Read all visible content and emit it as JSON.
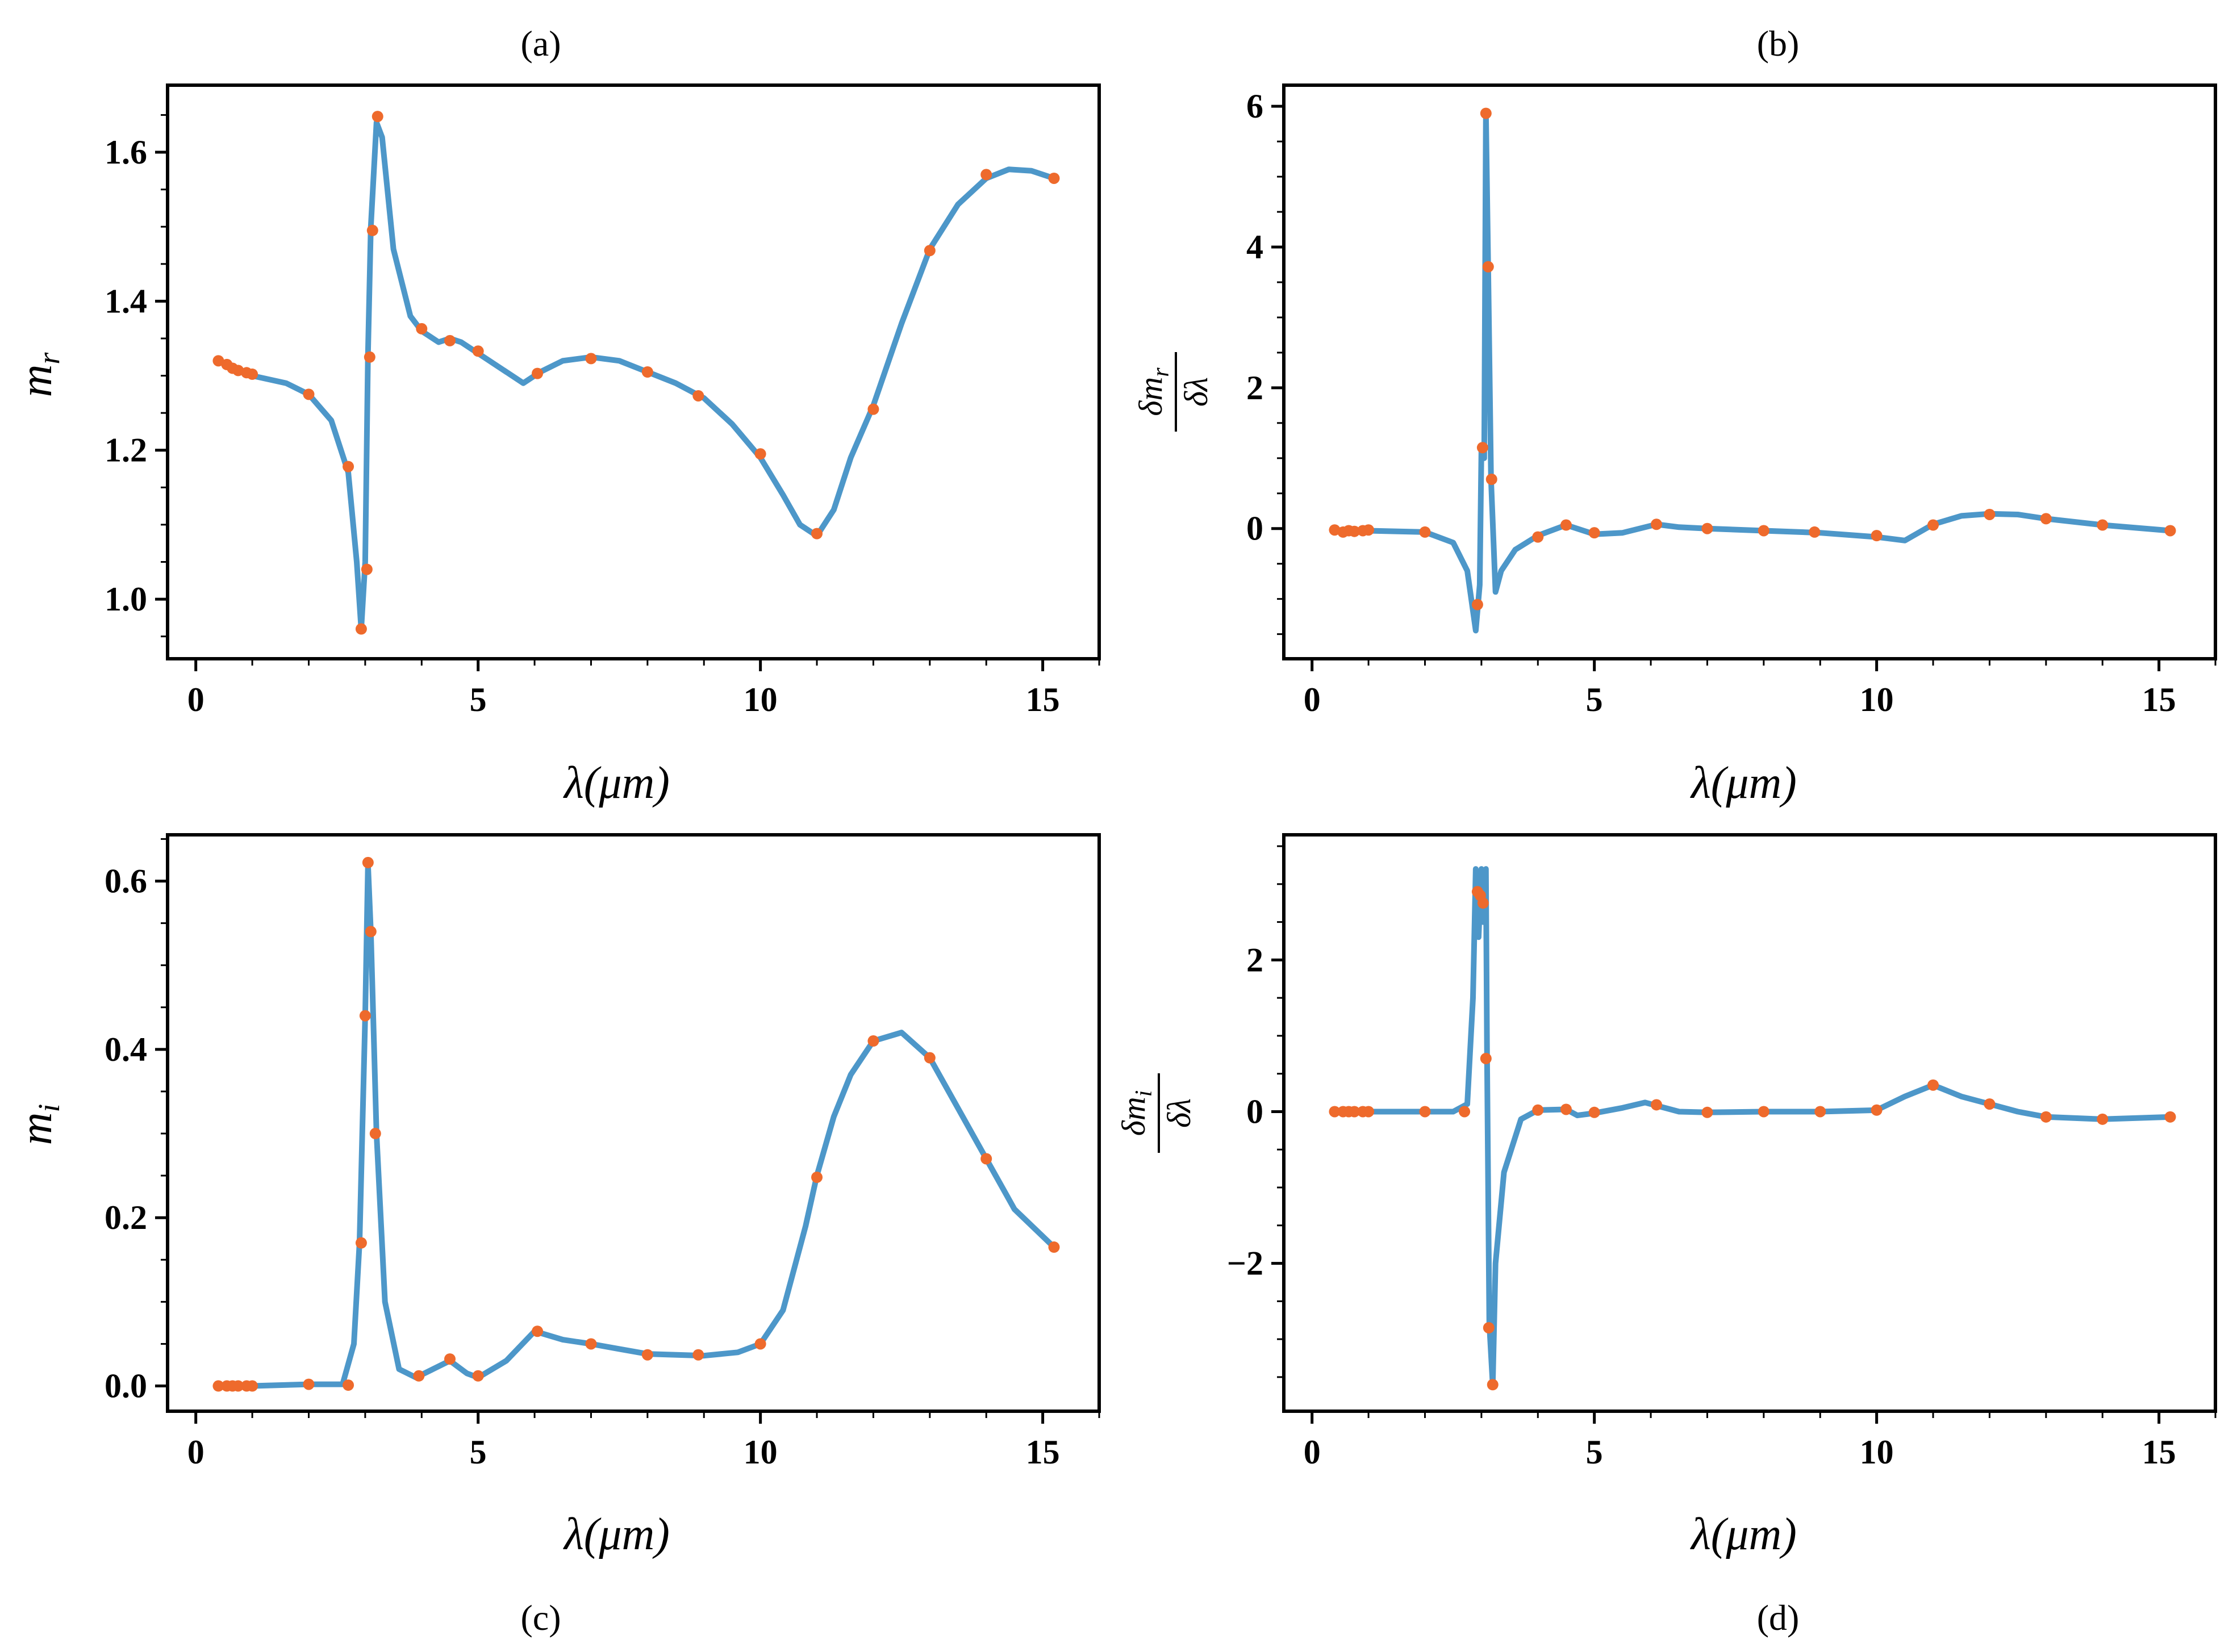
{
  "chart_data": [
    {
      "panel": "(a)",
      "type": "line",
      "xlabel": "λ(μm)",
      "ylabel": "m_r",
      "xlim": [
        -0.5,
        16
      ],
      "ylim": [
        0.92,
        1.69
      ],
      "xticks": [
        0,
        5,
        10,
        15
      ],
      "yticks": [
        1.0,
        1.2,
        1.4,
        1.6
      ],
      "ytick_labels": [
        "1.0",
        "1.2",
        "1.4",
        "1.6"
      ],
      "line": [
        [
          0.4,
          1.32
        ],
        [
          1.0,
          1.3
        ],
        [
          1.6,
          1.29
        ],
        [
          2.0,
          1.275
        ],
        [
          2.4,
          1.24
        ],
        [
          2.7,
          1.17
        ],
        [
          2.85,
          1.05
        ],
        [
          2.93,
          0.96
        ],
        [
          3.0,
          1.05
        ],
        [
          3.05,
          1.33
        ],
        [
          3.1,
          1.5
        ],
        [
          3.2,
          1.64
        ],
        [
          3.3,
          1.62
        ],
        [
          3.5,
          1.47
        ],
        [
          3.8,
          1.38
        ],
        [
          4.0,
          1.36
        ],
        [
          4.3,
          1.345
        ],
        [
          4.5,
          1.35
        ],
        [
          4.7,
          1.345
        ],
        [
          5.0,
          1.33
        ],
        [
          5.4,
          1.31
        ],
        [
          5.8,
          1.29
        ],
        [
          6.1,
          1.305
        ],
        [
          6.5,
          1.32
        ],
        [
          7.0,
          1.325
        ],
        [
          7.5,
          1.32
        ],
        [
          8.0,
          1.305
        ],
        [
          8.5,
          1.29
        ],
        [
          9.0,
          1.27
        ],
        [
          9.5,
          1.235
        ],
        [
          10.0,
          1.19
        ],
        [
          10.4,
          1.14
        ],
        [
          10.7,
          1.1
        ],
        [
          11.0,
          1.085
        ],
        [
          11.3,
          1.12
        ],
        [
          11.6,
          1.19
        ],
        [
          12.0,
          1.26
        ],
        [
          12.5,
          1.37
        ],
        [
          13.0,
          1.47
        ],
        [
          13.5,
          1.53
        ],
        [
          14.0,
          1.565
        ],
        [
          14.4,
          1.577
        ],
        [
          14.8,
          1.575
        ],
        [
          15.2,
          1.565
        ]
      ],
      "points": [
        [
          0.4,
          1.32
        ],
        [
          0.55,
          1.315
        ],
        [
          0.65,
          1.31
        ],
        [
          0.75,
          1.307
        ],
        [
          0.9,
          1.304
        ],
        [
          1.0,
          1.302
        ],
        [
          2.0,
          1.275
        ],
        [
          2.7,
          1.178
        ],
        [
          2.93,
          0.96
        ],
        [
          3.03,
          1.04
        ],
        [
          3.08,
          1.325
        ],
        [
          3.13,
          1.495
        ],
        [
          3.22,
          1.648
        ],
        [
          4.0,
          1.363
        ],
        [
          4.5,
          1.347
        ],
        [
          5.0,
          1.333
        ],
        [
          6.05,
          1.303
        ],
        [
          7.0,
          1.323
        ],
        [
          8.0,
          1.305
        ],
        [
          8.9,
          1.273
        ],
        [
          10.0,
          1.195
        ],
        [
          11.0,
          1.088
        ],
        [
          12.0,
          1.255
        ],
        [
          13.0,
          1.468
        ],
        [
          14.0,
          1.57
        ],
        [
          15.2,
          1.565
        ]
      ]
    },
    {
      "panel": "(b)",
      "type": "line",
      "xlabel": "λ(μm)",
      "ylabel_num": "δm_r",
      "ylabel_den": "δλ",
      "xlim": [
        -0.5,
        16
      ],
      "ylim": [
        -1.85,
        6.3
      ],
      "xticks": [
        0,
        5,
        10,
        15
      ],
      "yticks": [
        0,
        2,
        4,
        6
      ],
      "ytick_labels": [
        "0",
        "2",
        "4",
        "6"
      ],
      "line": [
        [
          0.4,
          -0.02
        ],
        [
          1.0,
          -0.03
        ],
        [
          2.0,
          -0.05
        ],
        [
          2.5,
          -0.2
        ],
        [
          2.75,
          -0.6
        ],
        [
          2.9,
          -1.45
        ],
        [
          2.97,
          -0.8
        ],
        [
          3.0,
          1.15
        ],
        [
          3.05,
          1.0
        ],
        [
          3.08,
          5.9
        ],
        [
          3.12,
          3.7
        ],
        [
          3.17,
          0.7
        ],
        [
          3.25,
          -0.9
        ],
        [
          3.35,
          -0.6
        ],
        [
          3.6,
          -0.3
        ],
        [
          4.0,
          -0.1
        ],
        [
          4.5,
          0.05
        ],
        [
          5.0,
          -0.08
        ],
        [
          5.5,
          -0.06
        ],
        [
          6.1,
          0.06
        ],
        [
          6.5,
          0.02
        ],
        [
          7.0,
          0.0
        ],
        [
          8.0,
          -0.03
        ],
        [
          9.0,
          -0.06
        ],
        [
          10.0,
          -0.12
        ],
        [
          10.5,
          -0.17
        ],
        [
          11.0,
          0.06
        ],
        [
          11.5,
          0.18
        ],
        [
          12.0,
          0.21
        ],
        [
          12.5,
          0.2
        ],
        [
          13.0,
          0.14
        ],
        [
          14.0,
          0.05
        ],
        [
          15.2,
          -0.03
        ]
      ],
      "points": [
        [
          0.4,
          -0.02
        ],
        [
          0.55,
          -0.05
        ],
        [
          0.65,
          -0.03
        ],
        [
          0.75,
          -0.04
        ],
        [
          0.9,
          -0.03
        ],
        [
          1.0,
          -0.02
        ],
        [
          2.0,
          -0.05
        ],
        [
          2.93,
          -1.08
        ],
        [
          3.02,
          1.15
        ],
        [
          3.08,
          5.9
        ],
        [
          3.12,
          3.72
        ],
        [
          3.18,
          0.7
        ],
        [
          4.0,
          -0.12
        ],
        [
          4.5,
          0.05
        ],
        [
          5.0,
          -0.06
        ],
        [
          6.1,
          0.06
        ],
        [
          7.0,
          0.0
        ],
        [
          8.0,
          -0.03
        ],
        [
          8.9,
          -0.05
        ],
        [
          10.0,
          -0.1
        ],
        [
          11.0,
          0.05
        ],
        [
          12.0,
          0.2
        ],
        [
          13.0,
          0.14
        ],
        [
          14.0,
          0.05
        ],
        [
          15.2,
          -0.03
        ]
      ]
    },
    {
      "panel": "(c)",
      "type": "line",
      "xlabel": "λ(μm)",
      "ylabel": "m_i",
      "xlim": [
        -0.5,
        16
      ],
      "ylim": [
        -0.03,
        0.655
      ],
      "xticks": [
        0,
        5,
        10,
        15
      ],
      "yticks": [
        0.0,
        0.2,
        0.4,
        0.6
      ],
      "ytick_labels": [
        "0.0",
        "0.2",
        "0.4",
        "0.6"
      ],
      "line": [
        [
          0.4,
          0.0
        ],
        [
          1.0,
          0.0
        ],
        [
          2.0,
          0.002
        ],
        [
          2.6,
          0.002
        ],
        [
          2.8,
          0.05
        ],
        [
          2.9,
          0.17
        ],
        [
          3.0,
          0.44
        ],
        [
          3.05,
          0.62
        ],
        [
          3.1,
          0.54
        ],
        [
          3.2,
          0.3
        ],
        [
          3.35,
          0.1
        ],
        [
          3.6,
          0.02
        ],
        [
          3.9,
          0.01
        ],
        [
          4.2,
          0.02
        ],
        [
          4.5,
          0.03
        ],
        [
          4.8,
          0.015
        ],
        [
          5.0,
          0.01
        ],
        [
          5.5,
          0.03
        ],
        [
          6.0,
          0.065
        ],
        [
          6.5,
          0.055
        ],
        [
          7.0,
          0.05
        ],
        [
          7.5,
          0.044
        ],
        [
          8.0,
          0.038
        ],
        [
          9.0,
          0.036
        ],
        [
          9.6,
          0.04
        ],
        [
          10.0,
          0.05
        ],
        [
          10.4,
          0.09
        ],
        [
          10.8,
          0.19
        ],
        [
          11.0,
          0.25
        ],
        [
          11.3,
          0.32
        ],
        [
          11.6,
          0.37
        ],
        [
          12.0,
          0.41
        ],
        [
          12.5,
          0.42
        ],
        [
          13.0,
          0.39
        ],
        [
          13.5,
          0.33
        ],
        [
          14.0,
          0.27
        ],
        [
          14.5,
          0.21
        ],
        [
          15.2,
          0.165
        ]
      ],
      "points": [
        [
          0.4,
          0.0
        ],
        [
          0.55,
          0.0
        ],
        [
          0.65,
          0.0
        ],
        [
          0.75,
          0.0
        ],
        [
          0.9,
          0.0
        ],
        [
          1.0,
          0.0
        ],
        [
          2.0,
          0.002
        ],
        [
          2.7,
          0.001
        ],
        [
          2.93,
          0.17
        ],
        [
          3.0,
          0.44
        ],
        [
          3.05,
          0.622
        ],
        [
          3.1,
          0.54
        ],
        [
          3.18,
          0.3
        ],
        [
          3.95,
          0.012
        ],
        [
          4.5,
          0.032
        ],
        [
          5.0,
          0.012
        ],
        [
          6.05,
          0.065
        ],
        [
          7.0,
          0.05
        ],
        [
          8.0,
          0.037
        ],
        [
          8.9,
          0.037
        ],
        [
          10.0,
          0.05
        ],
        [
          11.0,
          0.248
        ],
        [
          12.0,
          0.41
        ],
        [
          13.0,
          0.39
        ],
        [
          14.0,
          0.27
        ],
        [
          15.2,
          0.165
        ]
      ]
    },
    {
      "panel": "(d)",
      "type": "line",
      "xlabel": "λ(μm)",
      "ylabel_num": "δm_i",
      "ylabel_den": "δλ",
      "xlim": [
        -0.5,
        16
      ],
      "ylim": [
        -3.95,
        3.65
      ],
      "xticks": [
        0,
        5,
        10,
        15
      ],
      "yticks": [
        -2,
        0,
        2
      ],
      "ytick_labels": [
        "−2",
        "0",
        "2"
      ],
      "line": [
        [
          0.4,
          0.0
        ],
        [
          1.0,
          0.0
        ],
        [
          2.0,
          0.0
        ],
        [
          2.5,
          0.0
        ],
        [
          2.75,
          0.1
        ],
        [
          2.85,
          1.5
        ],
        [
          2.9,
          3.2
        ],
        [
          2.95,
          2.3
        ],
        [
          3.0,
          3.2
        ],
        [
          3.03,
          2.5
        ],
        [
          3.08,
          3.2
        ],
        [
          3.1,
          0.7
        ],
        [
          3.14,
          -2.8
        ],
        [
          3.2,
          -3.6
        ],
        [
          3.25,
          -2.0
        ],
        [
          3.4,
          -0.8
        ],
        [
          3.7,
          -0.1
        ],
        [
          4.0,
          0.02
        ],
        [
          4.5,
          0.03
        ],
        [
          4.7,
          -0.05
        ],
        [
          5.0,
          -0.02
        ],
        [
          5.5,
          0.05
        ],
        [
          5.9,
          0.12
        ],
        [
          6.1,
          0.08
        ],
        [
          6.5,
          0.0
        ],
        [
          7.0,
          -0.01
        ],
        [
          8.0,
          0.0
        ],
        [
          9.0,
          0.0
        ],
        [
          10.0,
          0.02
        ],
        [
          10.5,
          0.2
        ],
        [
          11.0,
          0.35
        ],
        [
          11.5,
          0.2
        ],
        [
          12.0,
          0.1
        ],
        [
          12.5,
          0.0
        ],
        [
          13.0,
          -0.07
        ],
        [
          14.0,
          -0.1
        ],
        [
          15.2,
          -0.07
        ]
      ],
      "points": [
        [
          0.4,
          0.0
        ],
        [
          0.55,
          0.0
        ],
        [
          0.65,
          0.0
        ],
        [
          0.75,
          0.0
        ],
        [
          0.9,
          0.0
        ],
        [
          1.0,
          0.0
        ],
        [
          2.0,
          0.0
        ],
        [
          2.7,
          0.0
        ],
        [
          2.93,
          2.9
        ],
        [
          2.98,
          2.85
        ],
        [
          3.03,
          2.75
        ],
        [
          3.08,
          0.7
        ],
        [
          3.13,
          -2.85
        ],
        [
          3.2,
          -3.6
        ],
        [
          4.0,
          0.02
        ],
        [
          4.5,
          0.03
        ],
        [
          5.0,
          -0.01
        ],
        [
          6.1,
          0.09
        ],
        [
          7.0,
          -0.01
        ],
        [
          8.0,
          0.0
        ],
        [
          9.0,
          0.0
        ],
        [
          10.0,
          0.02
        ],
        [
          11.0,
          0.35
        ],
        [
          12.0,
          0.1
        ],
        [
          13.0,
          -0.07
        ],
        [
          14.0,
          -0.1
        ],
        [
          15.2,
          -0.07
        ]
      ]
    }
  ]
}
